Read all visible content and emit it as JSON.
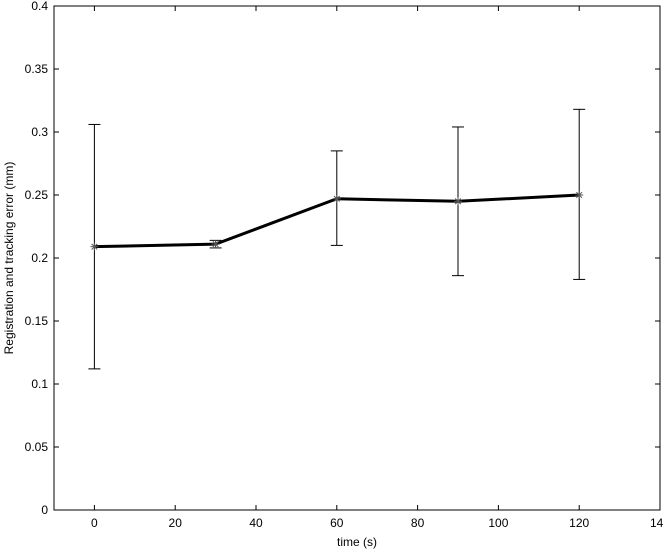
{
  "chart_data": {
    "type": "line",
    "title": "",
    "xlabel": "time (s)",
    "ylabel": "Registration and tracking error (mm)",
    "xlim": [
      -10,
      140
    ],
    "ylim": [
      0,
      0.4
    ],
    "xticks": [
      0,
      20,
      40,
      60,
      80,
      100,
      120,
      140
    ],
    "yticks": [
      0,
      0.05,
      0.1,
      0.15,
      0.2,
      0.25,
      0.3,
      0.35,
      0.4
    ],
    "xtick_labels": [
      "0",
      "20",
      "40",
      "60",
      "80",
      "100",
      "120",
      "140"
    ],
    "ytick_labels": [
      "0",
      "0.05",
      "0.1",
      "0.15",
      "0.2",
      "0.25",
      "0.3",
      "0.35",
      "0.4"
    ],
    "grid": false,
    "legend": "none",
    "marker": "asterisk",
    "line_color": "#000000",
    "series": [
      {
        "x": [
          0,
          30,
          60,
          90,
          120
        ],
        "y": [
          0.209,
          0.211,
          0.247,
          0.245,
          0.25
        ],
        "error_low": [
          0.112,
          0.208,
          0.21,
          0.186,
          0.183
        ],
        "error_high": [
          0.306,
          0.214,
          0.285,
          0.304,
          0.318
        ]
      }
    ]
  }
}
